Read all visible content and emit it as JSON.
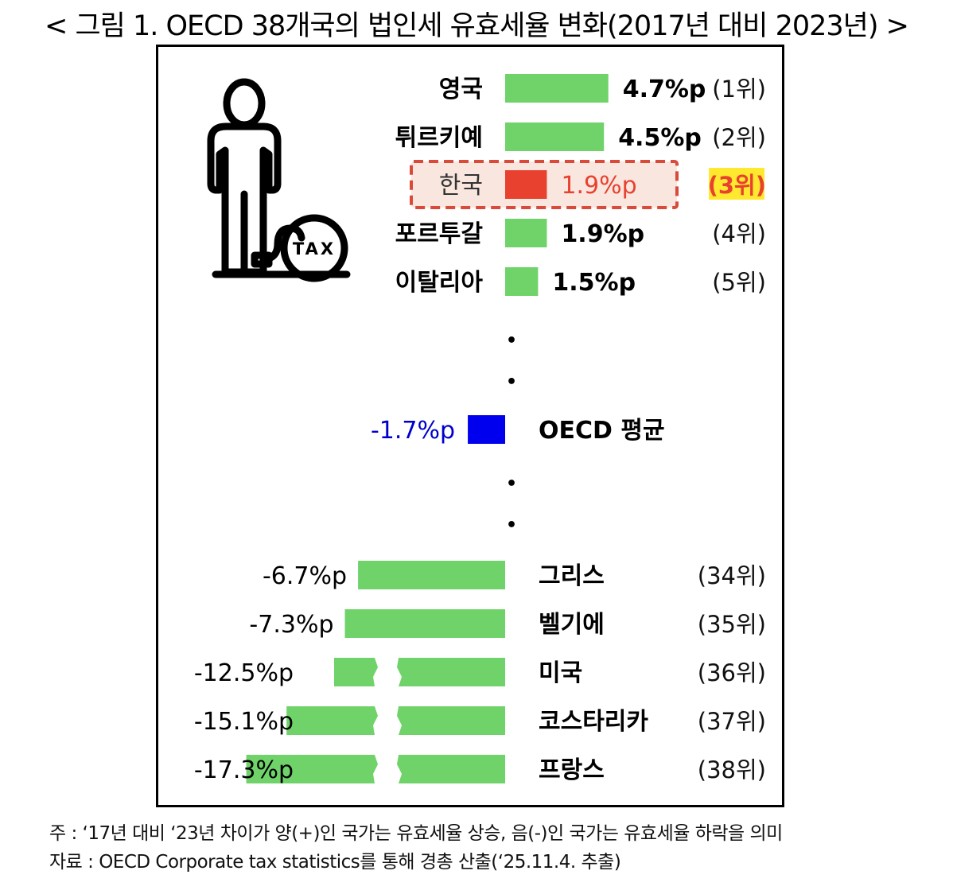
{
  "figure": {
    "title": "< 그림 1. OECD 38개국의 법인세 유효세율 변화(2017년 대비 2023년) >",
    "icon_name": "person-with-tax-ball-and-chain-icon",
    "icon_text": "TAX",
    "ellipsis_dot": "•"
  },
  "chart_data": {
    "type": "bar",
    "orientation": "horizontal",
    "unit": "%p",
    "top": [
      {
        "country": "영국",
        "value": 4.7,
        "label": "4.7%p",
        "rank": "(1위)"
      },
      {
        "country": "튀르키예",
        "value": 4.5,
        "label": "4.5%p",
        "rank": "(2위)"
      },
      {
        "country": "한국",
        "value": 1.9,
        "label": "1.9%p",
        "rank": "(3위)",
        "highlight": true
      },
      {
        "country": "포르투갈",
        "value": 1.9,
        "label": "1.9%p",
        "rank": "(4위)"
      },
      {
        "country": "이탈리아",
        "value": 1.5,
        "label": "1.5%p",
        "rank": "(5위)"
      }
    ],
    "average": {
      "country": "OECD 평균",
      "value": -1.7,
      "label": "-1.7%p"
    },
    "bottom": [
      {
        "country": "그리스",
        "value": -6.7,
        "label": "-6.7%p",
        "rank": "(34위)",
        "broken": false
      },
      {
        "country": "벨기에",
        "value": -7.3,
        "label": "-7.3%p",
        "rank": "(35위)",
        "broken": false
      },
      {
        "country": "미국",
        "value": -12.5,
        "label": "-12.5%p",
        "rank": "(36위)",
        "broken": true
      },
      {
        "country": "코스타리카",
        "value": -15.1,
        "label": "-15.1%p",
        "rank": "(37위)",
        "broken": true
      },
      {
        "country": "프랑스",
        "value": -17.3,
        "label": "-17.3%p",
        "rank": "(38위)",
        "broken": true
      }
    ],
    "colors": {
      "bar": "#70d36a",
      "highlight_bar": "#e8412f",
      "highlight_text": "#e8412f",
      "highlight_box_border": "#d94a3a",
      "highlight_box_fill": "#f9e6de",
      "highlight_rank_bg": "#ffe92e",
      "highlight_rank_text": "#e8412f",
      "average_bar": "#0000ee",
      "average_text": "#0000cc"
    }
  },
  "notes": [
    "주 : ‘17년 대비 ‘23년 차이가 양(+)인 국가는 유효세율 상승, 음(-)인 국가는 유효세율 하락을 의미",
    "자료 : OECD Corporate tax statistics를 통해 경총 산출(‘25.11.4. 추출)"
  ]
}
